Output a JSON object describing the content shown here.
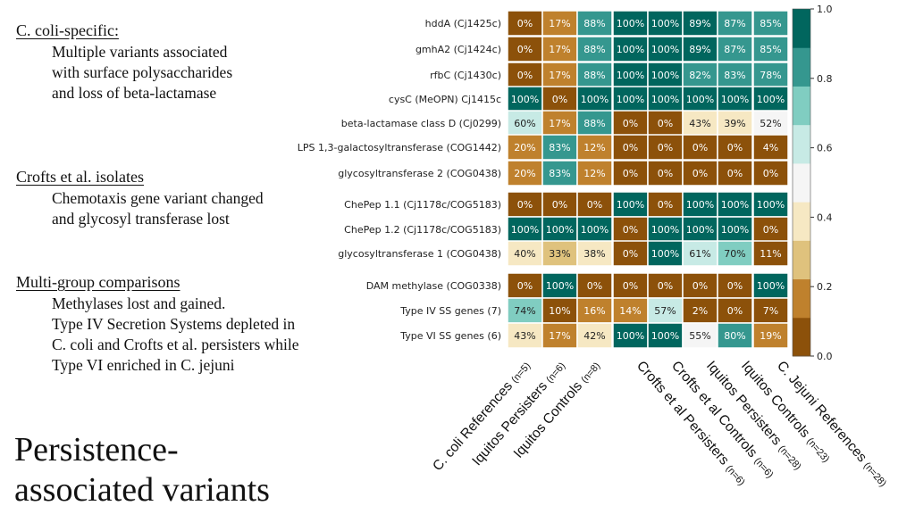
{
  "sections": [
    {
      "title": "C. coli-specific:",
      "lines": [
        "Multiple variants associated",
        "with surface polysaccharides",
        "and loss of beta-lactamase"
      ]
    },
    {
      "title": "Crofts et al. isolates",
      "lines": [
        "Chemotaxis gene variant changed",
        "and glycosyl transferase lost"
      ]
    },
    {
      "title": "Multi-group comparisons",
      "lines": [
        "Methylases lost and gained.",
        "Type IV Secretion Systems depleted in",
        "C. coli and Crofts et al. persisters while",
        "Type VI enriched in C. jejuni"
      ]
    }
  ],
  "big_title": [
    "Persistence-",
    "associated variants"
  ],
  "chart_data": {
    "type": "heatmap",
    "rows": [
      "hddA (Cj1425c)",
      "gmhA2 (Cj1424c)",
      "rfbC (Cj1430c)",
      "cysC (MeOPN) Cj1415c",
      "beta-lactamase class D (Cj0299)",
      "LPS 1,3-galactosyltransferase (COG1442)",
      "glycosyltransferase 2 (COG0438)",
      "ChePep 1.1 (Cj1178c/COG5183)",
      "ChePep 1.2 (Cj1178c/COG5183)",
      "glycosyltransferase 1 (COG0438)",
      "DAM methylase (COG0338)",
      "Type IV SS genes (7)",
      "Type VI SS genes (6)"
    ],
    "row_groups": [
      [
        0,
        1,
        2,
        3,
        4,
        5,
        6
      ],
      [
        7,
        8,
        9
      ],
      [
        10,
        11,
        12
      ]
    ],
    "columns": [
      {
        "name": "C. coli References",
        "n": "(n=5)"
      },
      {
        "name": "Iquitos Persisters",
        "n": "(n=6)"
      },
      {
        "name": "Iquitos Controls",
        "n": "(n=8)"
      },
      {
        "name": "Crofts et al Persisters",
        "n": "(n=6)"
      },
      {
        "name": "Crofts et al Controls",
        "n": "(n=6)"
      },
      {
        "name": "Iquitos Persisters",
        "n": "(n=28)"
      },
      {
        "name": "Iquitos Controls",
        "n": "(n=23)"
      },
      {
        "name": "C. Jejuni References",
        "n": "(n=28)"
      }
    ],
    "column_groups": [
      [
        0,
        1,
        2
      ],
      [
        3,
        4
      ],
      [
        5,
        6
      ],
      [
        7
      ]
    ],
    "values": [
      [
        0,
        17,
        88,
        100,
        100,
        89,
        87,
        85
      ],
      [
        0,
        17,
        88,
        100,
        100,
        89,
        87,
        85
      ],
      [
        0,
        17,
        88,
        100,
        100,
        82,
        83,
        78
      ],
      [
        100,
        0,
        100,
        100,
        100,
        100,
        100,
        100
      ],
      [
        60,
        17,
        88,
        0,
        0,
        43,
        39,
        52
      ],
      [
        20,
        83,
        12,
        0,
        0,
        0,
        0,
        4
      ],
      [
        20,
        83,
        12,
        0,
        0,
        0,
        0,
        0
      ],
      [
        0,
        0,
        0,
        100,
        0,
        100,
        100,
        100
      ],
      [
        100,
        100,
        100,
        0,
        100,
        100,
        100,
        0
      ],
      [
        40,
        33,
        38,
        0,
        100,
        61,
        70,
        11
      ],
      [
        0,
        100,
        0,
        0,
        0,
        0,
        0,
        100
      ],
      [
        74,
        10,
        16,
        14,
        57,
        2,
        0,
        7
      ],
      [
        43,
        17,
        42,
        100,
        100,
        55,
        80,
        19
      ]
    ],
    "value_labels": [
      [
        "0%",
        "17%",
        "88%",
        "100%",
        "100%",
        "89%",
        "87%",
        "85%"
      ],
      [
        "0%",
        "17%",
        "88%",
        "100%",
        "100%",
        "89%",
        "87%",
        "85%"
      ],
      [
        "0%",
        "17%",
        "88%",
        "100%",
        "100%",
        "82%",
        "83%",
        "78%"
      ],
      [
        "100%",
        "0%",
        "100%",
        "100%",
        "100%",
        "100%",
        "100%",
        "100%"
      ],
      [
        "60%",
        "17%",
        "88%",
        "0%",
        "0%",
        "43%",
        "39%",
        "52%"
      ],
      [
        "20%",
        "83%",
        "12%",
        "0%",
        "0%",
        "0%",
        "0%",
        "4%"
      ],
      [
        "20%",
        "83%",
        "12%",
        "0%",
        "0%",
        "0%",
        "0%",
        "0%"
      ],
      [
        "0%",
        "0%",
        "0%",
        "100%",
        "0%",
        "100%",
        "100%",
        "100%"
      ],
      [
        "100%",
        "100%",
        "100%",
        "0%",
        "100%",
        "100%",
        "100%",
        "0%"
      ],
      [
        "40%",
        "33%",
        "38%",
        "0%",
        "100%",
        "61%",
        "70%",
        "11%"
      ],
      [
        "0%",
        "100%",
        "0%",
        "0%",
        "0%",
        "0%",
        "0%",
        "100%"
      ],
      [
        "74%",
        "10%",
        "16%",
        "14%",
        "57%",
        "2%",
        "0%",
        "7%"
      ],
      [
        "43%",
        "17%",
        "42%",
        "100%",
        "100%",
        "55%",
        "80%",
        "19%"
      ]
    ],
    "colorbar": {
      "range": [
        0.0,
        1.0
      ],
      "ticks": [
        "0.0",
        "0.2",
        "0.4",
        "0.6",
        "0.8",
        "1.0"
      ],
      "bins": [
        "#8c510a",
        "#bf812d",
        "#dfc27d",
        "#f6e8c3",
        "#f5f5f5",
        "#c7eae5",
        "#80cdc1",
        "#35978f",
        "#01665e"
      ]
    }
  }
}
